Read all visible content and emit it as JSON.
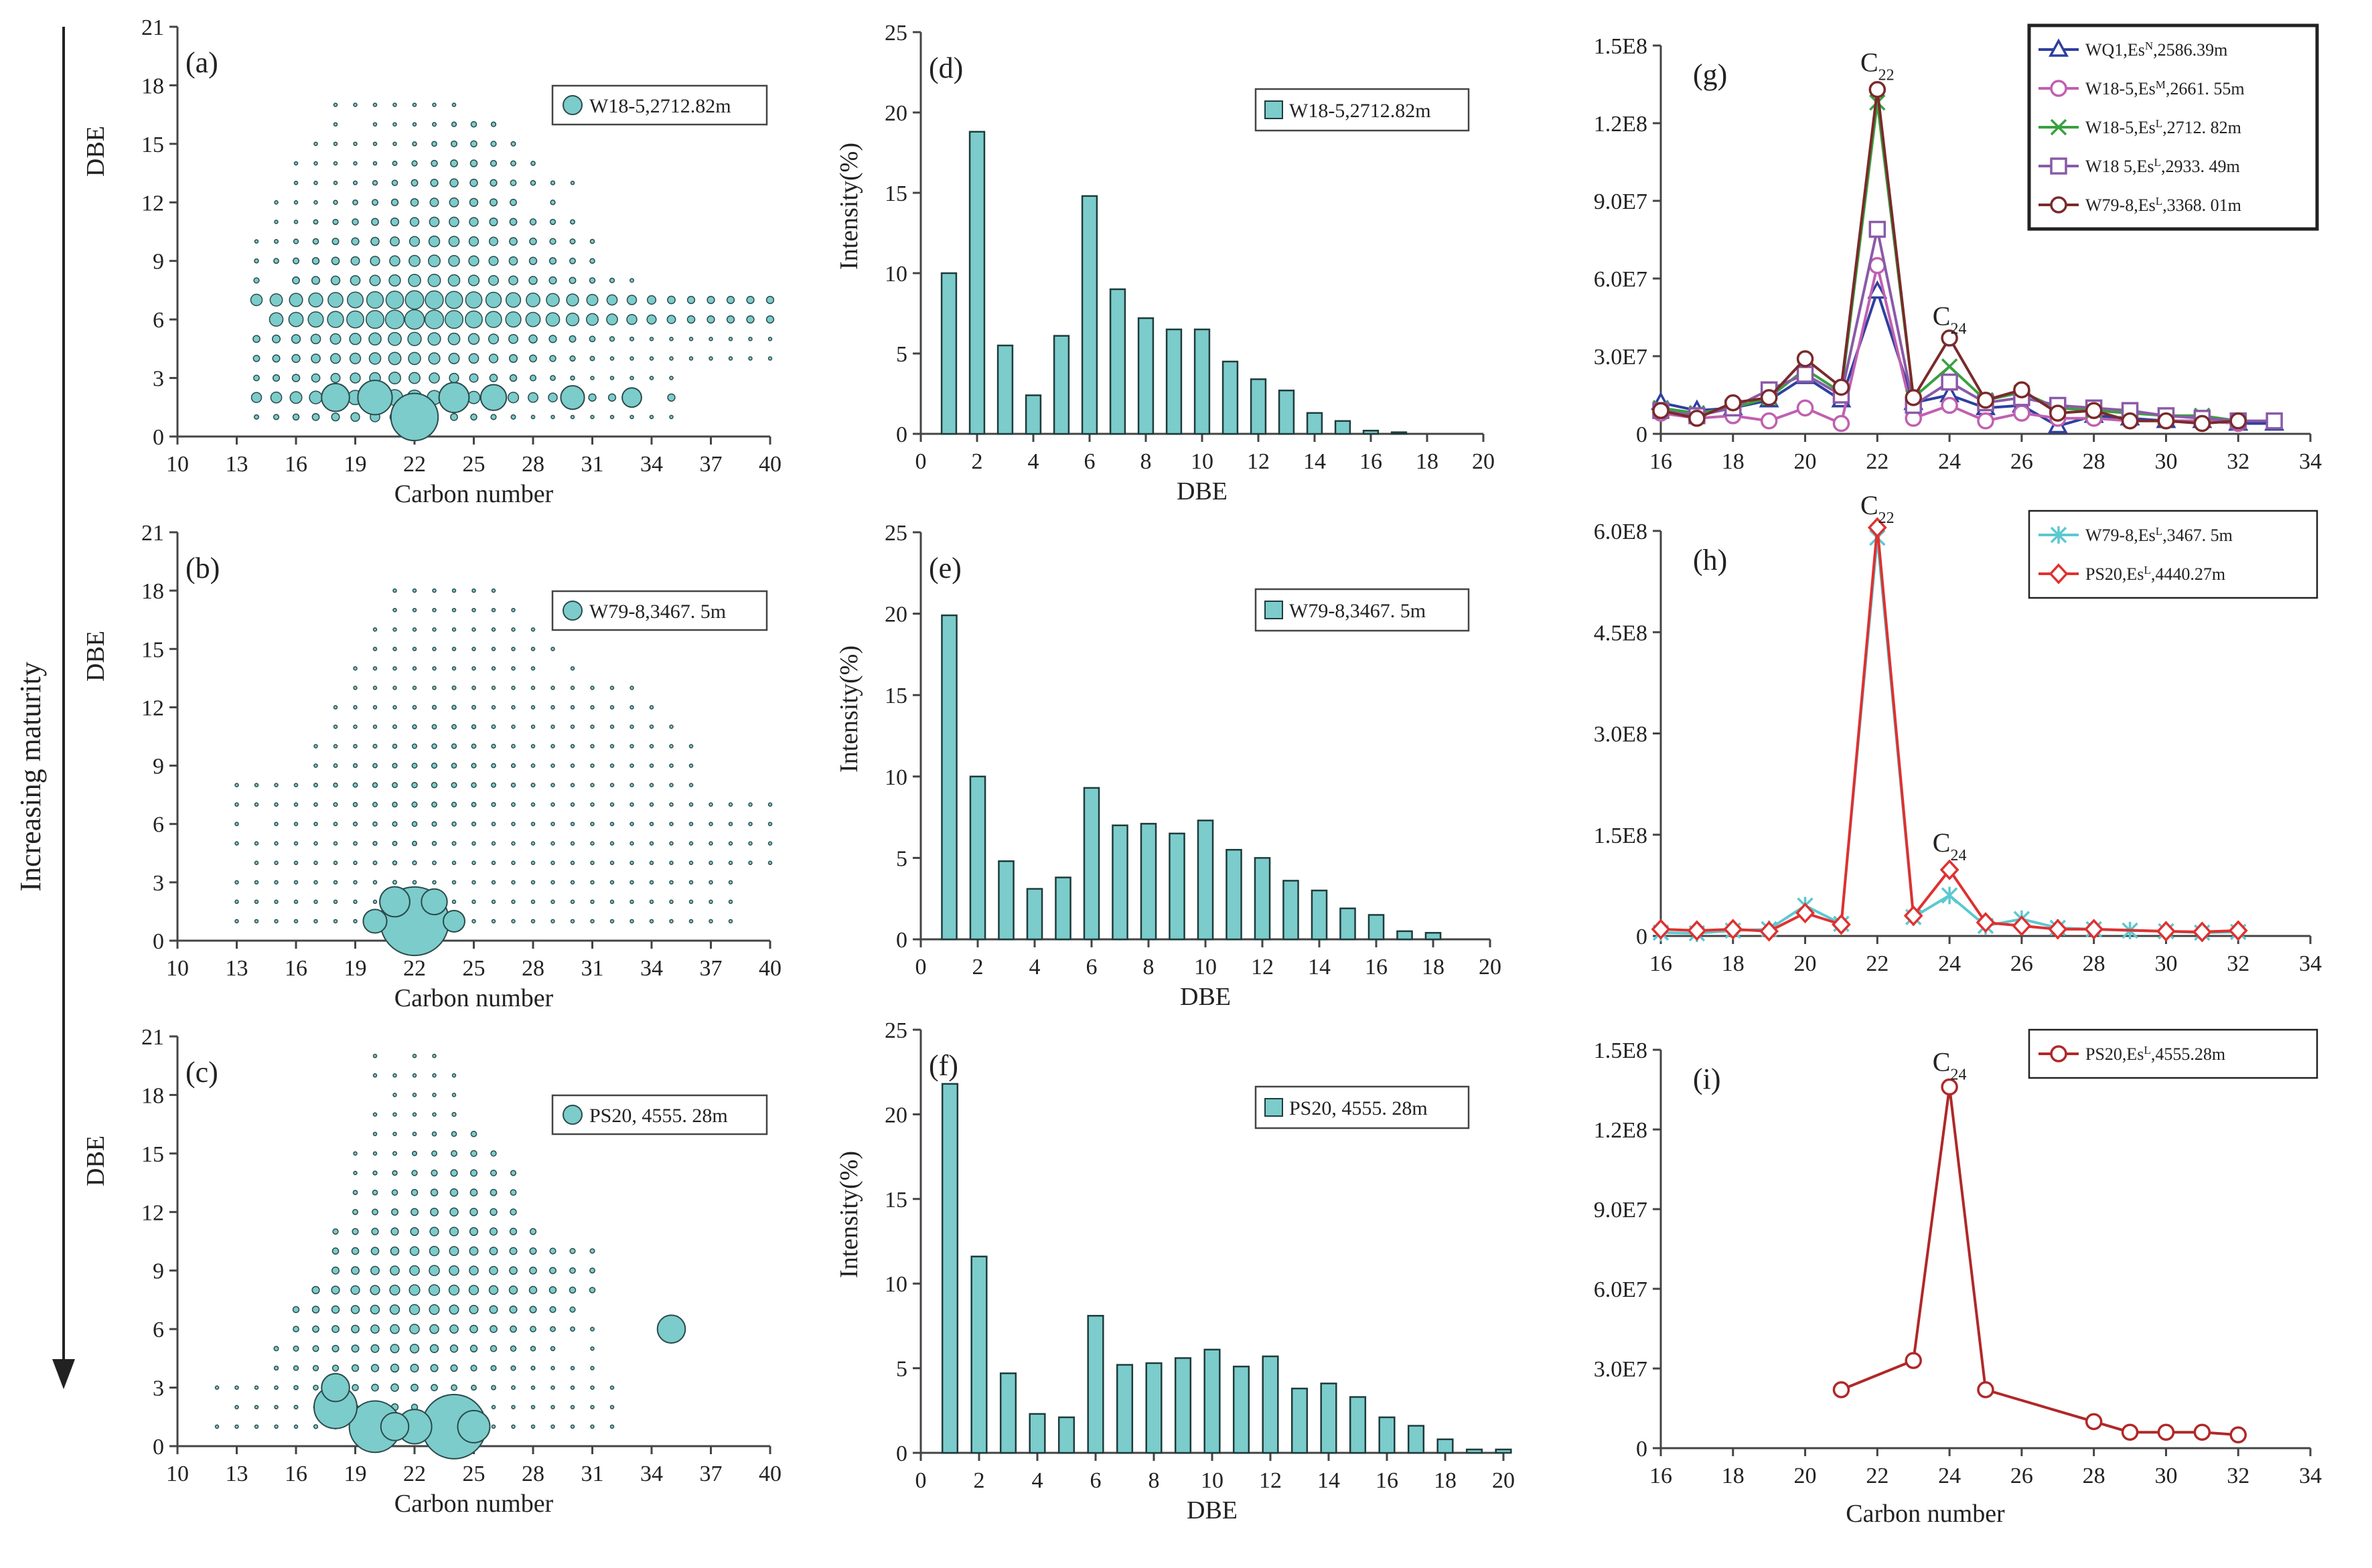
{
  "figure": {
    "maturity_label": "Increasing maturity"
  },
  "chart_data": [
    {
      "id": "a",
      "type": "scatter",
      "label": "(a)",
      "xlabel": "Carbon number",
      "ylabel": "DBE",
      "xlim": [
        10,
        40
      ],
      "ylim": [
        0,
        21
      ],
      "xticks": [
        10,
        13,
        16,
        19,
        22,
        25,
        28,
        31,
        34,
        37,
        40
      ],
      "yticks": [
        0,
        3,
        6,
        9,
        12,
        15,
        18,
        21
      ],
      "legend": "W18-5,2712.82m",
      "scale": 1.0,
      "big_points": [
        [
          22,
          1,
          2.2
        ],
        [
          20,
          2,
          1.6
        ],
        [
          24,
          2,
          1.4
        ],
        [
          18,
          2,
          1.3
        ],
        [
          26,
          2,
          1.2
        ],
        [
          30,
          2,
          1.1
        ],
        [
          33,
          2,
          0.9
        ]
      ]
    },
    {
      "id": "b",
      "type": "scatter",
      "label": "(b)",
      "xlabel": "Carbon number",
      "ylabel": "DBE",
      "xlim": [
        10,
        40
      ],
      "ylim": [
        0,
        21
      ],
      "xticks": [
        10,
        13,
        16,
        19,
        22,
        25,
        28,
        31,
        34,
        37,
        40
      ],
      "yticks": [
        0,
        3,
        6,
        9,
        12,
        15,
        18,
        21
      ],
      "legend": "W79-8,3467. 5m",
      "scale": 0.38,
      "big_points": [
        [
          22,
          1,
          3.2
        ],
        [
          21,
          2,
          1.4
        ],
        [
          23,
          2,
          1.2
        ],
        [
          20,
          1,
          1.1
        ],
        [
          24,
          1,
          1.0
        ]
      ]
    },
    {
      "id": "c",
      "type": "scatter",
      "label": "(c)",
      "xlabel": "Carbon number",
      "ylabel": "DBE",
      "xlim": [
        10,
        40
      ],
      "ylim": [
        0,
        21
      ],
      "xticks": [
        10,
        13,
        16,
        19,
        22,
        25,
        28,
        31,
        34,
        37,
        40
      ],
      "yticks": [
        0,
        3,
        6,
        9,
        12,
        15,
        18,
        21
      ],
      "legend": "PS20, 4555. 28m",
      "scale": 0.75,
      "big_points": [
        [
          24,
          1,
          3.0
        ],
        [
          20,
          1,
          2.4
        ],
        [
          18,
          2,
          2.0
        ],
        [
          22,
          1,
          1.6
        ],
        [
          18,
          3,
          1.3
        ],
        [
          25,
          1,
          1.5
        ],
        [
          35,
          6,
          1.3
        ],
        [
          21,
          1,
          1.3
        ]
      ]
    },
    {
      "id": "d",
      "type": "bar",
      "label": "(d)",
      "xlabel": "DBE",
      "ylabel": "Intensity(%)",
      "xlim": [
        0,
        20
      ],
      "ylim": [
        0,
        25
      ],
      "xticks": [
        0,
        2,
        4,
        6,
        8,
        10,
        12,
        14,
        16,
        18,
        20
      ],
      "yticks": [
        0,
        5,
        10,
        15,
        20,
        25
      ],
      "legend": "W18-5,2712.82m",
      "x": [
        1,
        2,
        3,
        4,
        5,
        6,
        7,
        8,
        9,
        10,
        11,
        12,
        13,
        14,
        15,
        16,
        17
      ],
      "values": [
        10.0,
        18.8,
        5.5,
        2.4,
        6.1,
        14.8,
        9.0,
        7.2,
        6.5,
        6.5,
        4.5,
        3.4,
        2.7,
        1.3,
        0.8,
        0.2,
        0.1
      ]
    },
    {
      "id": "e",
      "type": "bar",
      "label": "(e)",
      "xlabel": "DBE",
      "ylabel": "Intensity(%)",
      "xlim": [
        0,
        20
      ],
      "ylim": [
        0,
        25
      ],
      "xticks": [
        0,
        2,
        4,
        6,
        8,
        10,
        12,
        14,
        16,
        18,
        20
      ],
      "yticks": [
        0,
        5,
        10,
        15,
        20,
        25
      ],
      "legend": "W79-8,3467. 5m",
      "x": [
        1,
        2,
        3,
        4,
        5,
        6,
        7,
        8,
        9,
        10,
        11,
        12,
        13,
        14,
        15,
        16,
        17,
        18
      ],
      "values": [
        19.9,
        10.0,
        4.8,
        3.1,
        3.8,
        9.3,
        7.0,
        7.1,
        6.5,
        7.3,
        5.5,
        5.0,
        3.6,
        3.0,
        1.9,
        1.5,
        0.5,
        0.4
      ]
    },
    {
      "id": "f",
      "type": "bar",
      "label": "(f)",
      "xlabel": "DBE",
      "ylabel": "Intensity(%)",
      "xlim": [
        0,
        20
      ],
      "ylim": [
        0,
        25
      ],
      "xticks": [
        0,
        2,
        4,
        6,
        8,
        10,
        12,
        14,
        16,
        18,
        20
      ],
      "yticks": [
        0,
        5,
        10,
        15,
        20,
        25
      ],
      "legend": "PS20, 4555. 28m",
      "x": [
        1,
        2,
        3,
        4,
        5,
        6,
        7,
        8,
        9,
        10,
        11,
        12,
        13,
        14,
        15,
        16,
        17,
        18,
        19,
        20
      ],
      "values": [
        21.8,
        11.6,
        4.7,
        2.3,
        2.1,
        8.1,
        5.2,
        5.3,
        5.6,
        6.1,
        5.1,
        5.7,
        3.8,
        4.1,
        3.3,
        2.1,
        1.6,
        0.8,
        0.2,
        0.2
      ]
    },
    {
      "id": "g",
      "type": "line",
      "label": "(g)",
      "xlabel": "",
      "ylabel": "",
      "xlim": [
        16,
        34
      ],
      "ylim": [
        0,
        150000000
      ],
      "xticks": [
        16,
        18,
        20,
        22,
        24,
        26,
        28,
        30,
        32,
        34
      ],
      "yticks": [
        0,
        30000000,
        60000000,
        90000000,
        120000000,
        150000000
      ],
      "ytick_labels": [
        "0",
        "3.0E7",
        "6.0E7",
        "9.0E7",
        "1.2E8",
        "1.5E8"
      ],
      "annotations": [
        {
          "text": "C",
          "sub": "22",
          "x": 22,
          "y": 140000000
        },
        {
          "text": "C",
          "sub": "24",
          "x": 24,
          "y": 42000000
        }
      ],
      "series": [
        {
          "name": "WQ1,Es",
          "sup": "N",
          "depth": ",2586.39m",
          "color": "#2f3f9f",
          "marker": "triangle",
          "x": [
            16,
            17,
            18,
            19,
            20,
            21,
            22,
            23,
            24,
            25,
            26,
            27,
            28,
            29,
            30,
            31,
            32,
            33
          ],
          "y": [
            12000000,
            9000000,
            10000000,
            13000000,
            22000000,
            13000000,
            55000000,
            12000000,
            15000000,
            10000000,
            11000000,
            3000000,
            7000000,
            6000000,
            5000000,
            5000000,
            4000000,
            4000000
          ]
        },
        {
          "name": "W18-5,Es",
          "sup": "M",
          "depth": ",2661. 55m",
          "color": "#c060b0",
          "marker": "circle",
          "x": [
            16,
            17,
            18,
            19,
            20,
            21,
            22,
            23,
            24,
            25,
            26,
            27,
            28,
            29,
            30,
            31,
            32
          ],
          "y": [
            8000000,
            6000000,
            7000000,
            5000000,
            10000000,
            4000000,
            65000000,
            6000000,
            11000000,
            5000000,
            8000000,
            6000000,
            6000000,
            5000000,
            5000000,
            5000000,
            4000000
          ]
        },
        {
          "name": "W18-5,Es",
          "sup": "L",
          "depth": ",2712. 82m",
          "color": "#3aa040",
          "marker": "x",
          "x": [
            16,
            17,
            18,
            19,
            20,
            21,
            22,
            23,
            24,
            25,
            26,
            27,
            28,
            29,
            30,
            31,
            32
          ],
          "y": [
            10000000,
            8000000,
            10000000,
            14000000,
            25000000,
            16000000,
            128000000,
            14000000,
            26000000,
            13000000,
            16000000,
            10000000,
            9000000,
            8000000,
            7000000,
            7000000,
            5000000
          ]
        },
        {
          "name": "W18  5,Es",
          "sup": "L",
          "depth": ",2933. 49m",
          "color": "#8a5aa8",
          "marker": "square",
          "x": [
            16,
            17,
            18,
            19,
            20,
            21,
            22,
            23,
            24,
            25,
            26,
            27,
            28,
            29,
            30,
            31,
            32,
            33
          ],
          "y": [
            9000000,
            7000000,
            10000000,
            17000000,
            23000000,
            15000000,
            79000000,
            11000000,
            20000000,
            12000000,
            14000000,
            11000000,
            10000000,
            9000000,
            7000000,
            6000000,
            5000000,
            5000000
          ]
        },
        {
          "name": "W79-8,Es",
          "sup": "L",
          "depth": ",3368. 01m",
          "color": "#7a2a2a",
          "marker": "circle",
          "x": [
            16,
            17,
            18,
            19,
            20,
            21,
            22,
            23,
            24,
            25,
            26,
            27,
            28,
            29,
            30,
            31,
            32
          ],
          "y": [
            9000000,
            6000000,
            12000000,
            14000000,
            29000000,
            18000000,
            133000000,
            14000000,
            37000000,
            13000000,
            17000000,
            8000000,
            9000000,
            5000000,
            5000000,
            4000000,
            5000000
          ]
        }
      ]
    },
    {
      "id": "h",
      "type": "line",
      "label": "(h)",
      "xlabel": "",
      "ylabel": "",
      "xlim": [
        16,
        34
      ],
      "ylim": [
        0,
        600000000
      ],
      "xticks": [
        16,
        18,
        20,
        22,
        24,
        26,
        28,
        30,
        32,
        34
      ],
      "yticks": [
        0,
        150000000,
        300000000,
        450000000,
        600000000
      ],
      "ytick_labels": [
        "0",
        "1.5E8",
        "3.0E8",
        "4.5E8",
        "6.0E8"
      ],
      "annotations": [
        {
          "text": "C",
          "sub": "22",
          "x": 22,
          "y": 625000000
        },
        {
          "text": "C",
          "sub": "24",
          "x": 24,
          "y": 125000000
        }
      ],
      "series": [
        {
          "name": "W79-8,Es",
          "sup": "L",
          "depth": ",3467. 5m",
          "color": "#5cc8d0",
          "marker": "star",
          "x": [
            16,
            17,
            18,
            19,
            20,
            21,
            22,
            23,
            24,
            25,
            26,
            27,
            28,
            29,
            30,
            31,
            32
          ],
          "y": [
            5000000,
            4000000,
            8000000,
            10000000,
            45000000,
            18000000,
            590000000,
            28000000,
            60000000,
            15000000,
            25000000,
            12000000,
            10000000,
            8000000,
            7000000,
            5000000,
            6000000
          ]
        },
        {
          "name": "PS20,Es",
          "sup": "L",
          "depth": ",4440.27m",
          "color": "#e03030",
          "marker": "diamond",
          "x": [
            16,
            17,
            18,
            19,
            20,
            21,
            22,
            23,
            24,
            25,
            26,
            27,
            28,
            30,
            31,
            32
          ],
          "y": [
            10000000,
            8000000,
            10000000,
            7000000,
            34000000,
            17000000,
            605000000,
            30000000,
            98000000,
            20000000,
            15000000,
            10000000,
            10000000,
            7000000,
            6000000,
            8000000
          ]
        }
      ]
    },
    {
      "id": "i",
      "type": "line",
      "label": "(i)",
      "xlabel": "Carbon number",
      "ylabel": "",
      "xlim": [
        16,
        34
      ],
      "ylim": [
        0,
        150000000
      ],
      "xticks": [
        16,
        18,
        20,
        22,
        24,
        26,
        28,
        30,
        32,
        34
      ],
      "yticks": [
        0,
        30000000,
        60000000,
        90000000,
        120000000,
        150000000
      ],
      "ytick_labels": [
        "0",
        "3.0E7",
        "6.0E7",
        "9.0E7",
        "1.2E8",
        "1.5E8"
      ],
      "annotations": [
        {
          "text": "C",
          "sub": "24",
          "x": 24,
          "y": 142000000
        }
      ],
      "series": [
        {
          "name": "PS20,Es",
          "sup": "L",
          "depth": ",4555.28m",
          "color": "#b02828",
          "marker": "circle",
          "x": [
            21,
            23,
            24,
            25,
            28,
            29,
            30,
            31,
            32
          ],
          "y": [
            22000000,
            33000000,
            136000000,
            22000000,
            10000000,
            6000000,
            6000000,
            6000000,
            5000000
          ]
        }
      ]
    }
  ]
}
